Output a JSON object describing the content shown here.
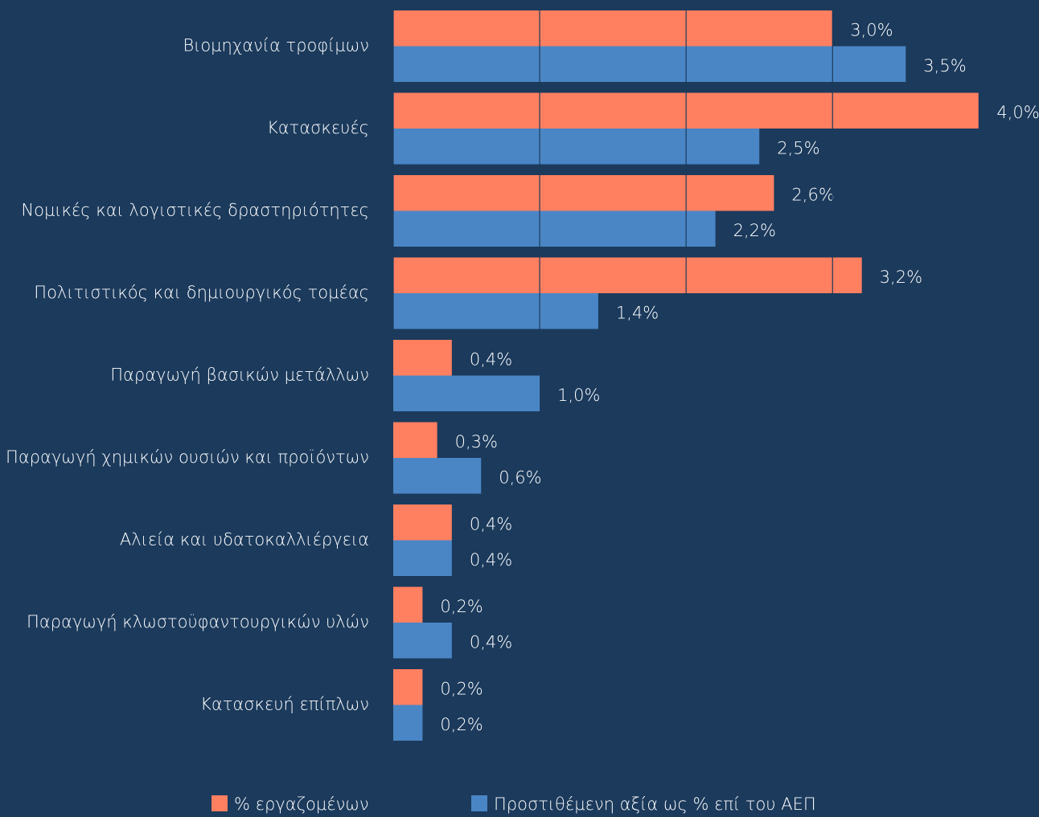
{
  "chart_data": {
    "type": "hbar",
    "categories": [
      "Βιομηχανία τροφίμων",
      "Κατασκευές",
      "Νομικές και λογιστικές δραστηριότητες",
      "Πολιτιστικός και δημιουργικός τομέας",
      "Παραγωγή βασικών μετάλλων",
      "Παραγωγή χημικών ουσιών και προϊόντων",
      "Αλιεία και υδατοκαλλιέργεια",
      "Παραγωγή κλωστοϋφαντουργικών υλών",
      "Κατασκευή επίπλων"
    ],
    "series": [
      {
        "name": "% εργαζομένων",
        "color": "#ff7f61",
        "values": [
          3.0,
          4.0,
          2.6,
          3.2,
          0.4,
          0.3,
          0.4,
          0.2,
          0.2
        ],
        "value_labels": [
          "3,0%",
          "4,0%",
          "2,6%",
          "3,2%",
          "0,4%",
          "0,3%",
          "0,4%",
          "0,2%",
          "0,2%"
        ]
      },
      {
        "name": "Προστιθέμενη αξία ως % επί του ΑΕΠ",
        "color": "#4a86c5",
        "values": [
          3.5,
          2.5,
          2.2,
          1.4,
          1.0,
          0.6,
          0.4,
          0.4,
          0.2
        ],
        "value_labels": [
          "3,5%",
          "2,5%",
          "2,2%",
          "1,4%",
          "1,0%",
          "0,6%",
          "0,4%",
          "0,4%",
          "0,2%"
        ]
      }
    ],
    "xlim": [
      0,
      4.41
    ],
    "xticks": [
      0,
      1,
      2,
      3,
      4
    ],
    "grid": true,
    "legend": "bottom"
  }
}
